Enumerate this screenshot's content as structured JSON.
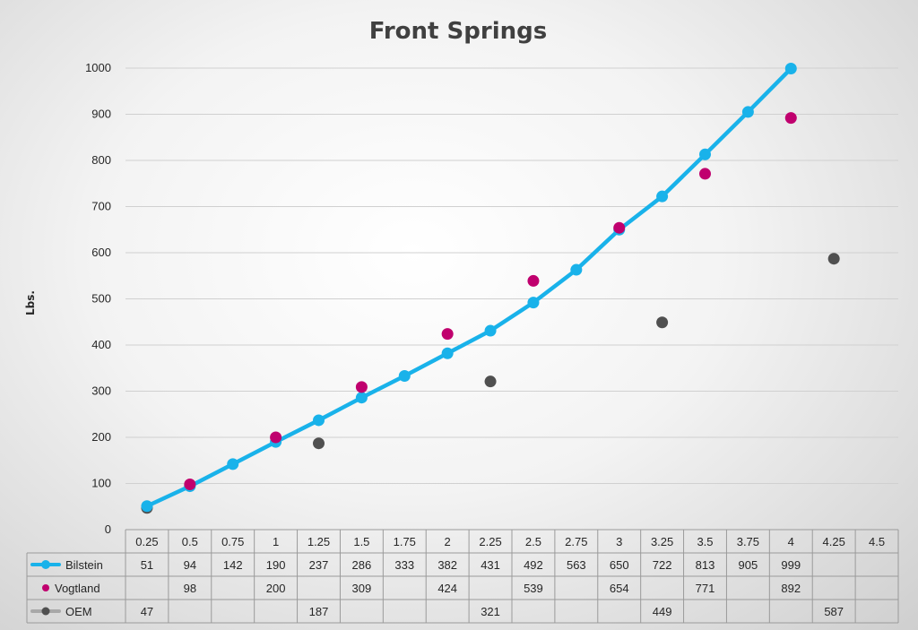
{
  "chart_data": {
    "type": "line",
    "title": "Front Springs",
    "ylabel": "Lbs.",
    "xlabel": "",
    "ylim": [
      0,
      1000
    ],
    "yticks": [
      0,
      100,
      200,
      300,
      400,
      500,
      600,
      700,
      800,
      900,
      1000
    ],
    "grid": true,
    "categories": [
      "0.25",
      "0.5",
      "0.75",
      "1",
      "1.25",
      "1.5",
      "1.75",
      "2",
      "2.25",
      "2.5",
      "2.75",
      "3",
      "3.25",
      "3.5",
      "3.75",
      "4",
      "4.25",
      "4.5"
    ],
    "series": [
      {
        "name": "Bilstein",
        "style": "line-markers",
        "color": "#19b2ea",
        "values": [
          51,
          94,
          142,
          190,
          237,
          286,
          333,
          382,
          431,
          492,
          563,
          650,
          722,
          813,
          905,
          999,
          null,
          null
        ]
      },
      {
        "name": "Vogtland",
        "style": "markers",
        "color": "#c0006e",
        "values": [
          null,
          98,
          null,
          200,
          null,
          309,
          null,
          424,
          null,
          539,
          null,
          654,
          null,
          771,
          null,
          892,
          null,
          null
        ]
      },
      {
        "name": "OEM",
        "style": "markers",
        "color": "#505050",
        "values": [
          47,
          null,
          null,
          null,
          187,
          null,
          null,
          null,
          321,
          null,
          null,
          null,
          449,
          null,
          null,
          null,
          587,
          null
        ]
      }
    ],
    "legend_placement": "data-table-rows"
  }
}
